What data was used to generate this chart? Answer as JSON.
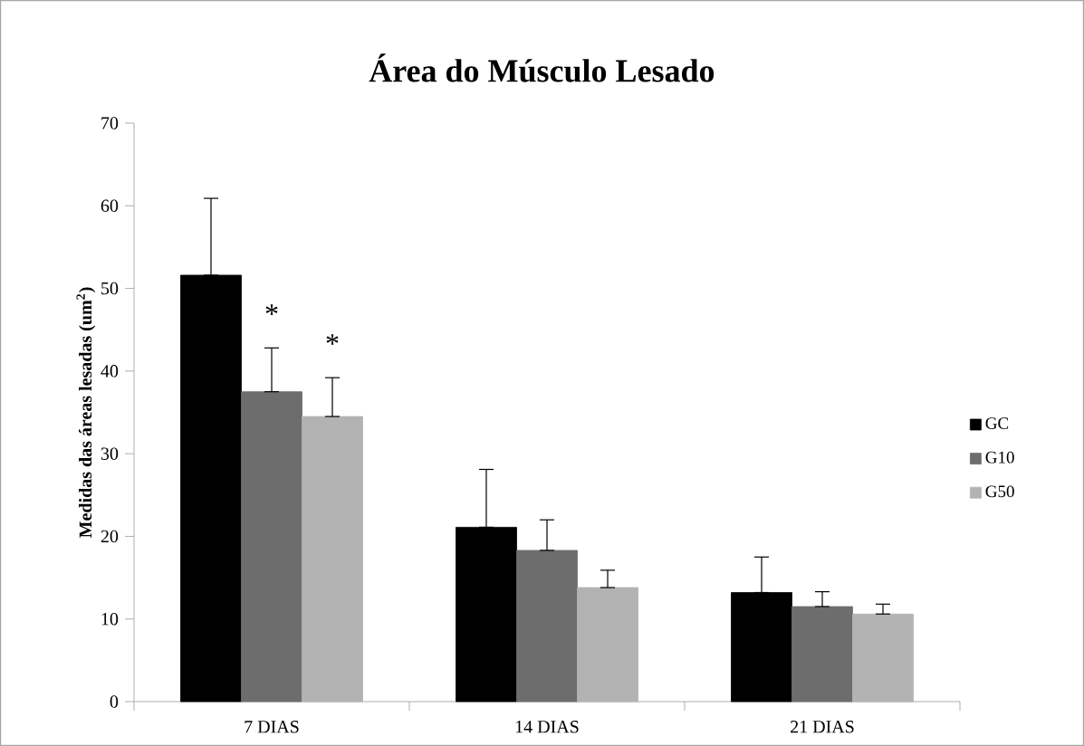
{
  "chart_data": {
    "type": "bar",
    "title": "Área do Músculo Lesado",
    "ylabel": "Medidas das áreas lesadas (um$^{2}$)",
    "categories": [
      "7 DIAS",
      "14 DIAS",
      "21 DIAS"
    ],
    "series": [
      {
        "name": "GC",
        "color": "#000000",
        "values": [
          51.6,
          21.1,
          13.2
        ],
        "errors": [
          [
            51.6,
            60.9
          ],
          [
            21.1,
            28.1
          ],
          [
            13.2,
            17.5
          ]
        ]
      },
      {
        "name": "G10",
        "color": "#6d6d6d",
        "values": [
          37.5,
          18.3,
          11.5
        ],
        "errors": [
          [
            37.5,
            42.8
          ],
          [
            18.3,
            22.0
          ],
          [
            11.5,
            13.3
          ]
        ]
      },
      {
        "name": "G50",
        "color": "#b3b3b3",
        "values": [
          34.5,
          13.8,
          10.6
        ],
        "errors": [
          [
            34.5,
            39.2
          ],
          [
            13.8,
            15.9
          ],
          [
            10.6,
            11.8
          ]
        ]
      }
    ],
    "annotations": [
      "*",
      "*"
    ],
    "ylim": [
      0,
      70
    ],
    "yticks": [
      0,
      10,
      20,
      30,
      40,
      50,
      60,
      70
    ],
    "legend": "right",
    "grid": false
  }
}
